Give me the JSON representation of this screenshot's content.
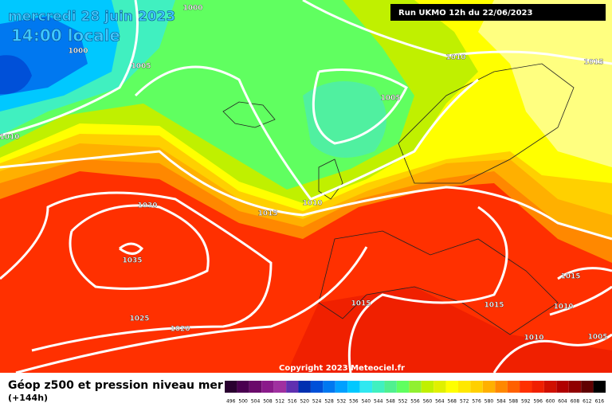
{
  "header": {
    "date": "mercredi 28 juin 2023",
    "time": "14:00 locale",
    "run": "Run UKMO 12h du 22/06/2023"
  },
  "isobars": [
    "1000",
    "1000",
    "1005",
    "1010",
    "1015",
    "1005",
    "1010",
    "1030",
    "1035",
    "1015",
    "1010",
    "1015",
    "1025",
    "1020",
    "1015",
    "1015",
    "1010",
    "1010",
    "1005"
  ],
  "copyright": "Copyright 2023 Meteociel.fr",
  "legend": {
    "title": "Géop z500 et pression niveau mer",
    "lead": "(+144h)",
    "scale": [
      {
        "label": "496",
        "color": "#2a0030"
      },
      {
        "label": "500",
        "color": "#4a0050"
      },
      {
        "label": "504",
        "color": "#6a0a6a"
      },
      {
        "label": "508",
        "color": "#8a1a8a"
      },
      {
        "label": "512",
        "color": "#a030a0"
      },
      {
        "label": "516",
        "color": "#6030b0"
      },
      {
        "label": "520",
        "color": "#0030b0"
      },
      {
        "label": "524",
        "color": "#0050d8"
      },
      {
        "label": "528",
        "color": "#0078f0"
      },
      {
        "label": "532",
        "color": "#00a0ff"
      },
      {
        "label": "536",
        "color": "#00c8ff"
      },
      {
        "label": "540",
        "color": "#30e8f0"
      },
      {
        "label": "544",
        "color": "#40f0c0"
      },
      {
        "label": "548",
        "color": "#50f090"
      },
      {
        "label": "552",
        "color": "#60ff60"
      },
      {
        "label": "556",
        "color": "#90f030"
      },
      {
        "label": "560",
        "color": "#c0f000"
      },
      {
        "label": "564",
        "color": "#e0f000"
      },
      {
        "label": "568",
        "color": "#ffff00"
      },
      {
        "label": "572",
        "color": "#ffe800"
      },
      {
        "label": "576",
        "color": "#ffd000"
      },
      {
        "label": "580",
        "color": "#ffb000"
      },
      {
        "label": "584",
        "color": "#ff8800"
      },
      {
        "label": "588",
        "color": "#ff6000"
      },
      {
        "label": "592",
        "color": "#ff3000"
      },
      {
        "label": "596",
        "color": "#f02000"
      },
      {
        "label": "600",
        "color": "#d01000"
      },
      {
        "label": "604",
        "color": "#b00000"
      },
      {
        "label": "608",
        "color": "#900000"
      },
      {
        "label": "612",
        "color": "#600000"
      },
      {
        "label": "616",
        "color": "#000000"
      }
    ]
  }
}
